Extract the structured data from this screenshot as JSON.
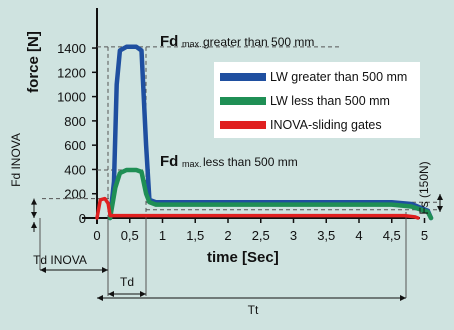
{
  "colors": {
    "background": "#cfe3e0",
    "lw_gt_500": "#1f4fa0",
    "lw_lt_500": "#1f8f55",
    "inova": "#e02020",
    "axis": "#111111",
    "guide": "#555555",
    "legend_bg": "#ffffff"
  },
  "chart_data": {
    "type": "line",
    "xlabel": "time [Sec]",
    "ylabel": "force [N]",
    "xlim": [
      0,
      5.25
    ],
    "ylim": [
      0,
      1500
    ],
    "x_ticks": [
      "0",
      "0,5",
      "1",
      "1,5",
      "2",
      "2,5",
      "3",
      "3,5",
      "4",
      "4,5",
      "5"
    ],
    "x_tick_values": [
      0,
      0.5,
      1,
      1.5,
      2,
      2.5,
      3,
      3.5,
      4,
      4.5,
      5
    ],
    "y_ticks": [
      "0",
      "200",
      "400",
      "600",
      "800",
      "1000",
      "1200",
      "1400"
    ],
    "y_tick_values": [
      0,
      200,
      400,
      600,
      800,
      1000,
      1200,
      1400
    ],
    "grid": false,
    "legend_position": "top-right",
    "series": [
      {
        "name": "LW greater than 500 mm",
        "color_key": "lw_gt_500",
        "points": [
          [
            0.2,
            0
          ],
          [
            0.26,
            300
          ],
          [
            0.3,
            1100
          ],
          [
            0.35,
            1380
          ],
          [
            0.45,
            1410
          ],
          [
            0.6,
            1410
          ],
          [
            0.68,
            1380
          ],
          [
            0.75,
            600
          ],
          [
            0.8,
            150
          ],
          [
            0.9,
            130
          ],
          [
            4.5,
            130
          ],
          [
            4.8,
            115
          ],
          [
            5.05,
            60
          ],
          [
            5.1,
            0
          ]
        ]
      },
      {
        "name": "LW less than 500 mm",
        "color_key": "lw_lt_500",
        "points": [
          [
            0.2,
            0
          ],
          [
            0.28,
            250
          ],
          [
            0.35,
            370
          ],
          [
            0.45,
            395
          ],
          [
            0.6,
            395
          ],
          [
            0.68,
            380
          ],
          [
            0.75,
            200
          ],
          [
            0.8,
            130
          ],
          [
            0.9,
            110
          ],
          [
            4.5,
            110
          ],
          [
            4.8,
            95
          ],
          [
            5.05,
            50
          ],
          [
            5.1,
            0
          ]
        ]
      },
      {
        "name": "INOVA-sliding gates",
        "color_key": "inova",
        "points": [
          [
            0.0,
            0
          ],
          [
            0.05,
            150
          ],
          [
            0.12,
            160
          ],
          [
            0.17,
            120
          ],
          [
            0.2,
            20
          ],
          [
            0.3,
            20
          ],
          [
            4.7,
            20
          ],
          [
            4.85,
            10
          ],
          [
            4.9,
            0
          ]
        ]
      }
    ],
    "annotations": {
      "fd_max_label": "Fd",
      "fd_max_sub": "max.",
      "fd_gt_text": "greater than 500 mm",
      "fd_lt_text": "less than 500 mm",
      "fd_inova": "Fd INOVA",
      "fs": "Fs (150N)",
      "td_inova": "Td INOVA",
      "td": "Td",
      "tt": "Tt",
      "fd_gt_level": 1410,
      "fd_lt_level": 395,
      "fd_inova_level": 160,
      "fs_level": 150,
      "static_level": 130,
      "td_inova_end": 0.2,
      "td_start": 0.2,
      "td_end": 0.8,
      "tt_end": 5.1
    }
  }
}
